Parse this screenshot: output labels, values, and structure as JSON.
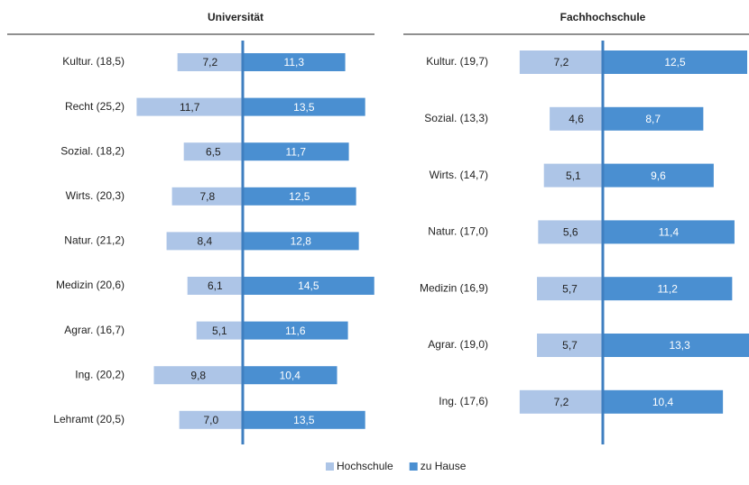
{
  "chart_data": [
    {
      "type": "diverging-bar",
      "title": "Universität",
      "categories": [
        "Kultur. (18,5)",
        "Recht (25,2)",
        "Sozial. (18,2)",
        "Wirts. (20,3)",
        "Natur. (21,2)",
        "Medizin (20,6)",
        "Agrar. (16,7)",
        "Ing. (20,2)",
        "Lehramt (20,5)"
      ],
      "series": [
        {
          "name": "Hochschule",
          "color": "#adc5e7",
          "values": [
            7.2,
            11.7,
            6.5,
            7.8,
            8.4,
            6.1,
            5.1,
            9.8,
            7.0
          ],
          "value_labels": [
            "7,2",
            "11,7",
            "6,5",
            "7,8",
            "8,4",
            "6,1",
            "5,1",
            "9,8",
            "7,0"
          ]
        },
        {
          "name": "zu Hause",
          "color": "#4a8fd1",
          "values": [
            11.3,
            13.5,
            11.7,
            12.5,
            12.8,
            14.5,
            11.6,
            10.4,
            13.5
          ],
          "value_labels": [
            "11,3",
            "13,5",
            "11,7",
            "12,5",
            "12,8",
            "14,5",
            "11,6",
            "10,4",
            "13,5"
          ]
        }
      ]
    },
    {
      "type": "diverging-bar",
      "title": "Fachhochschule",
      "categories": [
        "Kultur. (19,7)",
        "Sozial. (13,3)",
        "Wirts. (14,7)",
        "Natur. (17,0)",
        "Medizin (16,9)",
        "Agrar. (19,0)",
        "Ing. (17,6)"
      ],
      "series": [
        {
          "color": "#adc5e7",
          "values": [
            7.2,
            4.6,
            5.1,
            5.6,
            5.7,
            5.7,
            7.2
          ],
          "value_labels": [
            "7,2",
            "4,6",
            "5,1",
            "5,6",
            "5,7",
            "5,7",
            "7,2"
          ]
        },
        {
          "color": "#4a8fd1",
          "values": [
            12.5,
            8.7,
            9.6,
            11.4,
            11.2,
            13.3,
            10.4
          ],
          "value_labels": [
            "12,5",
            "8,7",
            "9,6",
            "11,4",
            "11,2",
            "13,3",
            "10,4"
          ]
        }
      ]
    }
  ]
}
